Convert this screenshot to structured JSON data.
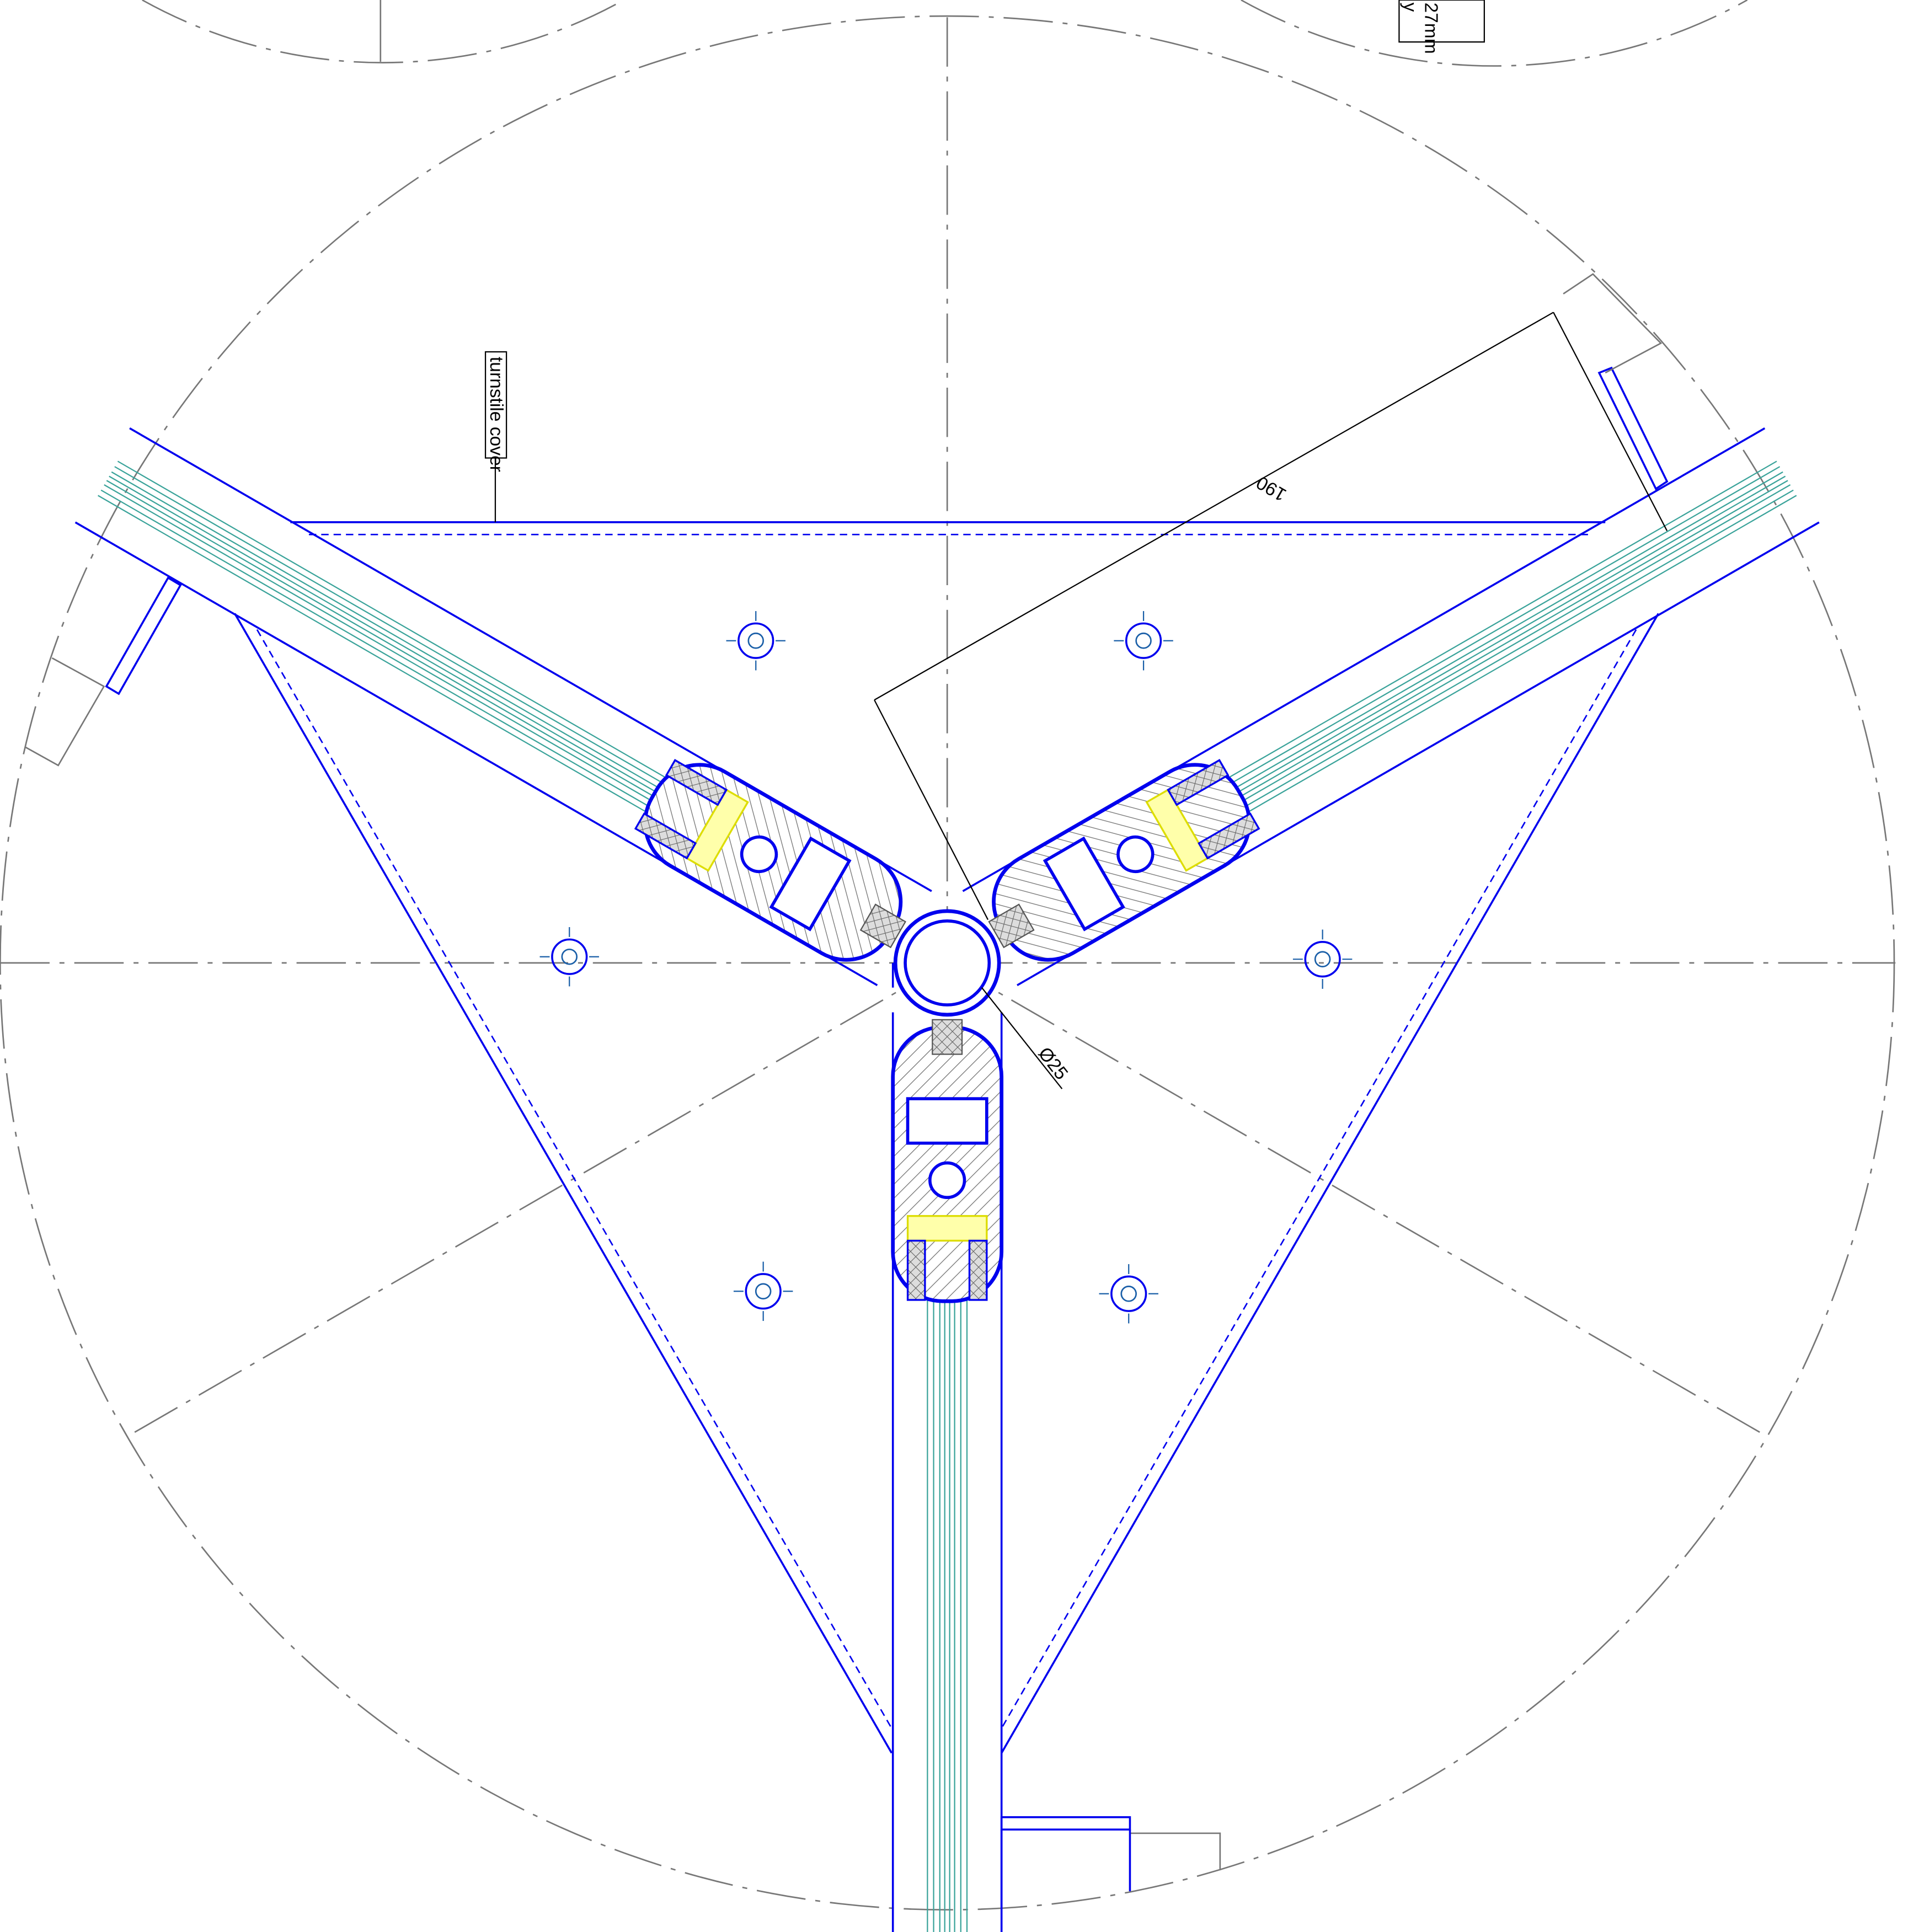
{
  "labels": {
    "cover": "turnstile cover",
    "dimension_190": "190",
    "diameter": "Ø25",
    "note_line1": "27mm",
    "note_line2": "y"
  }
}
